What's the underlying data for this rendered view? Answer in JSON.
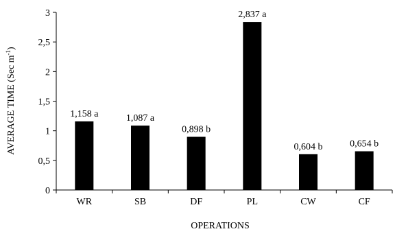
{
  "chart_data": {
    "type": "bar",
    "categories": [
      "WR",
      "SB",
      "DF",
      "PL",
      "CW",
      "CF"
    ],
    "values": [
      1.158,
      1.087,
      0.898,
      2.837,
      0.604,
      0.654
    ],
    "data_labels": [
      "1,158 a",
      "1,087 a",
      "0,898 b",
      "2,837 a",
      "0,604 b",
      "0,654 b"
    ],
    "xlabel": "OPERATIONS",
    "ylabel_main": "AVERAGE TIME (Sec m",
    "ylabel_sup": "-1",
    "ylabel_close": ")",
    "ylim": [
      0,
      3
    ],
    "y_ticks": [
      0,
      0.5,
      1,
      1.5,
      2,
      2.5,
      3
    ],
    "y_tick_labels": [
      "0",
      "0,5",
      "1",
      "1,5",
      "2",
      "2,5",
      "3"
    ],
    "grid": false,
    "legend": "none",
    "bar_color": "#000000"
  }
}
